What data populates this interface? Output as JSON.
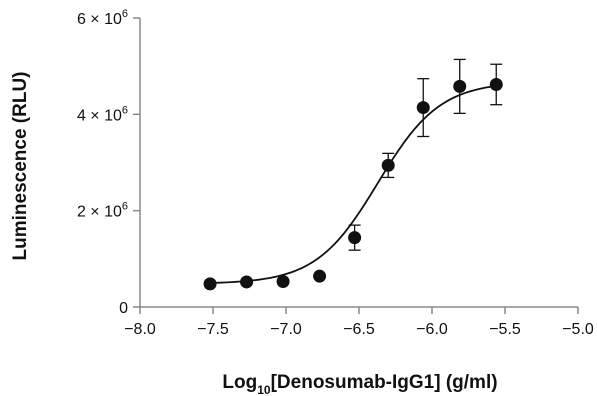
{
  "chart_data": {
    "type": "scatter",
    "xlabel_parts": {
      "prefix": "Log",
      "subscript": "10",
      "suffix": "[Denosumab-IgG1] (g/ml)"
    },
    "ylabel": "Luminescence (RLU)",
    "xlim": [
      -8.0,
      -5.0
    ],
    "ylim": [
      0,
      6000000
    ],
    "x_ticks": [
      -8.0,
      -7.5,
      -7.0,
      -6.5,
      -6.0,
      -5.5,
      -5.0
    ],
    "x_tick_labels": [
      "−8.0",
      "−7.5",
      "−7.0",
      "−6.5",
      "−6.0",
      "−5.5",
      "−5.0"
    ],
    "y_ticks": [
      0,
      2000000,
      4000000,
      6000000
    ],
    "y_tick_labels": [
      {
        "base": "0",
        "exp": ""
      },
      {
        "base": "2 × 10",
        "exp": "6"
      },
      {
        "base": "4 × 10",
        "exp": "6"
      },
      {
        "base": "6 × 10",
        "exp": "6"
      }
    ],
    "grid": false,
    "series": [
      {
        "x": [
          -7.52,
          -7.27,
          -7.02,
          -6.77,
          -6.53,
          -6.3,
          -6.06,
          -5.81,
          -5.56
        ],
        "y": [
          480000,
          520000,
          530000,
          640000,
          1440000,
          2940000,
          4140000,
          4580000,
          4620000
        ],
        "error": [
          0,
          0,
          0,
          0,
          260000,
          250000,
          600000,
          560000,
          420000
        ]
      }
    ],
    "fit_curve": {
      "type": "4PL sigmoid",
      "bottom": 480000,
      "top": 4680000,
      "log_ec50": -6.37,
      "hill_slope": 2.05,
      "x_range": [
        -7.52,
        -5.56
      ]
    }
  }
}
